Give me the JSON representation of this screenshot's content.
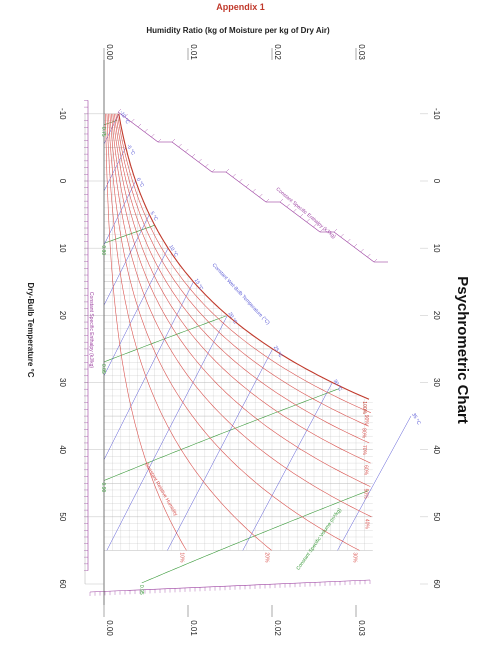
{
  "appendix_label": "Appendix 1",
  "chart_data": {
    "type": "line",
    "title": "Psychrometric Chart",
    "xlabel": "Dry-Bulb Temperature °C",
    "ylabel": "Humidity Ratio (kg of Moisture per kg of Dry Air)",
    "xlim": [
      -15,
      62
    ],
    "ylim": [
      0,
      0.032
    ],
    "x_ticks": [
      "-10",
      "0",
      "10",
      "20",
      "30",
      "40",
      "50",
      "60"
    ],
    "y_ticks": [
      "0.00",
      "0.01",
      "0.02",
      "0.03"
    ],
    "grid": true,
    "orientation": "rotated-90",
    "annotations": {
      "enthalpy": "Constant Specific Enthalpy (kJ/kg)",
      "wet_bulb": "Constant Wet-Bulb Temperature (°C)",
      "rh": "Constant Relative Humidity",
      "volume": "Constant Specific Volume (m³/kg)",
      "enthalpy_scale": "Constant Specific Enthalpy (kJ/kg)"
    },
    "series": [
      {
        "name": "RH 10%",
        "rh": 0.1,
        "color": "#d9534f"
      },
      {
        "name": "RH 20%",
        "rh": 0.2,
        "color": "#d9534f"
      },
      {
        "name": "RH 30%",
        "rh": 0.3,
        "color": "#d9534f"
      },
      {
        "name": "RH 40%",
        "rh": 0.4,
        "color": "#d9534f"
      },
      {
        "name": "RH 50%",
        "rh": 0.5,
        "color": "#d9534f"
      },
      {
        "name": "RH 60%",
        "rh": 0.6,
        "color": "#d9534f"
      },
      {
        "name": "RH 70%",
        "rh": 0.7,
        "color": "#d9534f"
      },
      {
        "name": "RH 80%",
        "rh": 0.8,
        "color": "#d9534f"
      },
      {
        "name": "RH 90%",
        "rh": 0.9,
        "color": "#d9534f"
      },
      {
        "name": "RH 100%",
        "rh": 1.0,
        "color": "#c0392b"
      }
    ],
    "rh_labels": [
      "10%",
      "20%",
      "30%",
      "40%",
      "50%",
      "60%",
      "70%",
      "80%",
      "90%",
      "100%"
    ],
    "wet_bulb_lines": [
      {
        "label": "-10 °C",
        "t": -10
      },
      {
        "label": "-5 °C",
        "t": -5
      },
      {
        "label": "0 °C",
        "t": 0
      },
      {
        "label": "5 °C",
        "t": 5
      },
      {
        "label": "10 °C",
        "t": 10
      },
      {
        "label": "15 °C",
        "t": 15
      },
      {
        "label": "20 °C",
        "t": 20
      },
      {
        "label": "25 °C",
        "t": 25
      },
      {
        "label": "30 °C",
        "t": 30
      },
      {
        "label": "35 °C",
        "t": 35
      }
    ],
    "volume_lines": [
      {
        "label": "0.75",
        "v": 0.75
      },
      {
        "label": "0.80",
        "v": 0.8
      },
      {
        "label": "0.85",
        "v": 0.85
      },
      {
        "label": "0.90",
        "v": 0.9
      },
      {
        "label": "0.95",
        "v": 0.95
      }
    ],
    "colors": {
      "rh": "#d9534f",
      "wet_bulb": "#5b5bd6",
      "volume": "#3a9a3a",
      "enthalpy_scale": "#9b3fa0",
      "grid": "#b9b9b9",
      "axis": "#555555"
    }
  }
}
